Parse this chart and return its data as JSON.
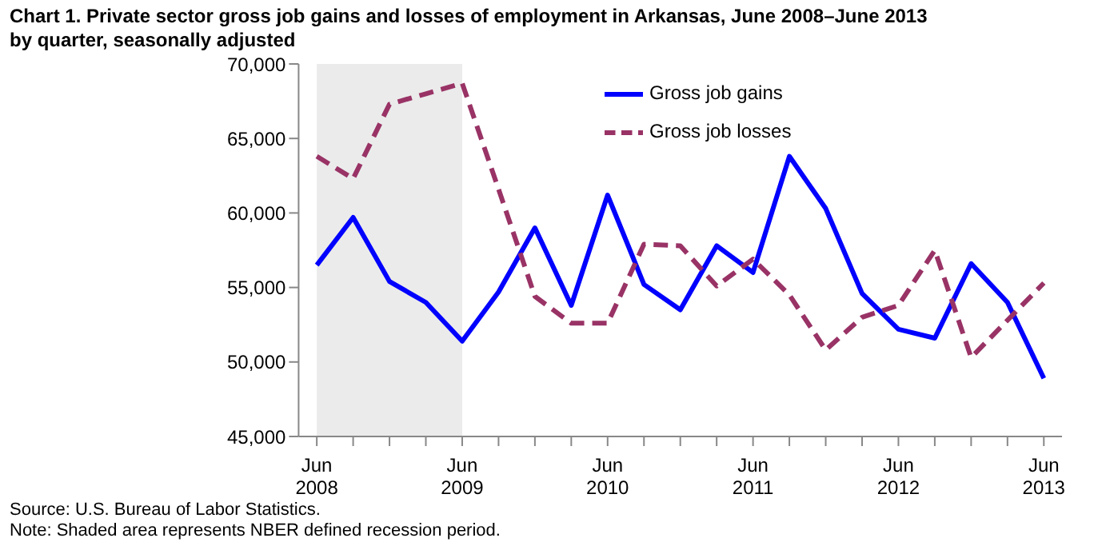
{
  "chart_data": {
    "type": "line",
    "title": "Chart 1. Private sector gross job gains and losses of employment in Arkansas, June 2008–June 2013",
    "subtitle": "by quarter, seasonally adjusted",
    "categories": [
      "Jun 2008",
      null,
      null,
      null,
      "Jun 2009",
      null,
      null,
      null,
      "Jun 2010",
      null,
      null,
      null,
      "Jun 2011",
      null,
      null,
      null,
      "Jun 2012",
      null,
      null,
      null,
      "Jun 2013"
    ],
    "series": [
      {
        "name": "Gross job gains",
        "color": "#0000ff",
        "line_style": "solid",
        "values": [
          56500,
          59700,
          55400,
          54000,
          51400,
          54700,
          59000,
          53800,
          61200,
          55200,
          53500,
          57800,
          56000,
          63800,
          60300,
          54600,
          52200,
          51600,
          56600,
          54000,
          48900
        ]
      },
      {
        "name": "Gross job losses",
        "color": "#993366",
        "line_style": "dashed",
        "values": [
          63800,
          62300,
          67300,
          68000,
          68700,
          61600,
          54400,
          52600,
          52600,
          57900,
          57800,
          55100,
          56900,
          54500,
          50800,
          53000,
          53800,
          57500,
          50300,
          52800,
          55300
        ]
      }
    ],
    "ylim": [
      45000,
      70000
    ],
    "yticks": [
      {
        "value": 45000,
        "label": "45,000"
      },
      {
        "value": 50000,
        "label": "50,000"
      },
      {
        "value": 55000,
        "label": "55,000"
      },
      {
        "value": 60000,
        "label": "60,000"
      },
      {
        "value": 65000,
        "label": "65,000"
      },
      {
        "value": 70000,
        "label": "70,000"
      }
    ],
    "bands": [
      {
        "axis": "x",
        "from": "Jun 2008",
        "to": "Jun 2009",
        "color": "#ebebeb"
      }
    ],
    "grid": false,
    "legend": "top right",
    "marker": "none",
    "annotations": [
      "Source: U.S. Bureau of Labor Statistics.",
      "Note: Shaded area represents NBER defined recession period."
    ]
  }
}
